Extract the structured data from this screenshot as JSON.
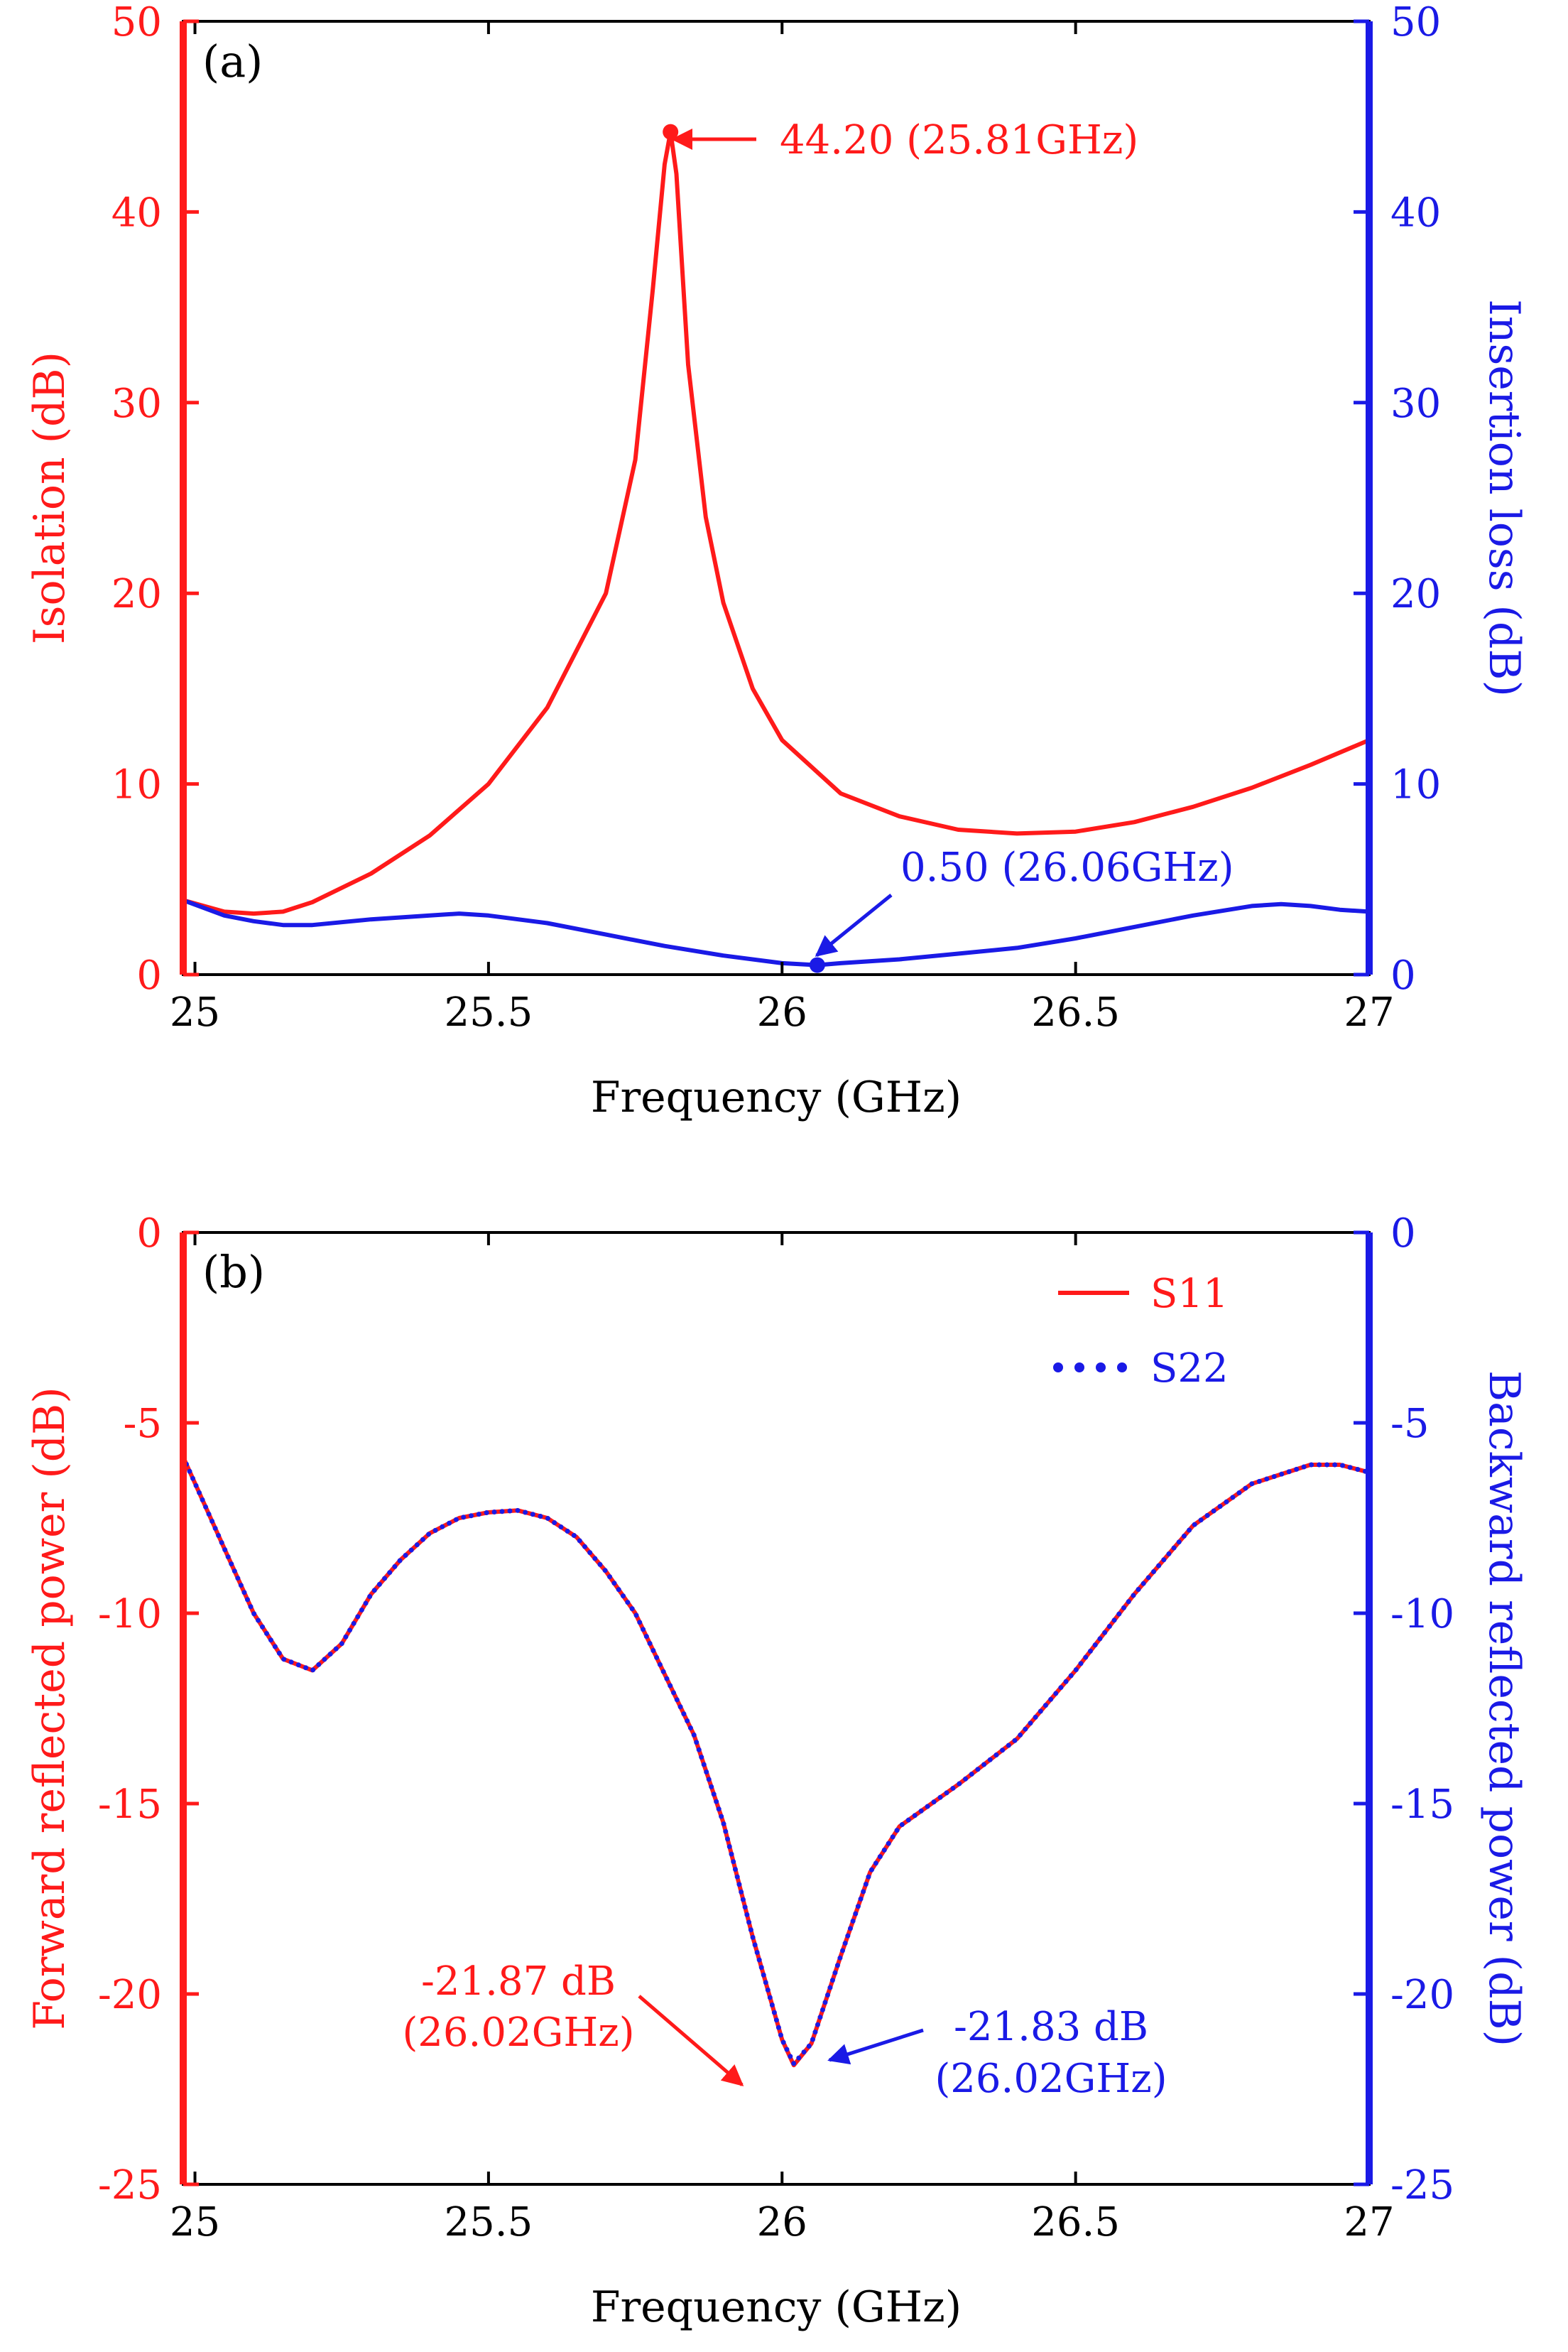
{
  "colors": {
    "red": "#ff1a1a",
    "blue": "#1a1ae6",
    "black": "#000000"
  },
  "chart_data": [
    {
      "type": "line",
      "panel_label": "(a)",
      "xlabel": "Frequency (GHz)",
      "ylabel_left": "Isolation (dB)",
      "ylabel_right": "Insertion loss (dB)",
      "xlim": [
        24.98,
        27.0
      ],
      "ylim_left": [
        0,
        50
      ],
      "ylim_right": [
        0,
        50
      ],
      "x_ticks": [
        25,
        25.5,
        26,
        26.5,
        27
      ],
      "x_tick_labels": [
        "25",
        "25.5",
        "26",
        "26.5",
        "27"
      ],
      "y_ticks_left": [
        0,
        10,
        20,
        30,
        40,
        50
      ],
      "y_tick_labels_left": [
        "0",
        "10",
        "20",
        "30",
        "40",
        "50"
      ],
      "y_ticks_right": [
        0,
        10,
        20,
        30,
        40,
        50
      ],
      "y_tick_labels_right": [
        "0",
        "10",
        "20",
        "30",
        "40",
        "50"
      ],
      "series": [
        {
          "name": "Isolation",
          "axis": "left",
          "color": "#ff1a1a",
          "style": "solid",
          "x": [
            24.98,
            25.05,
            25.1,
            25.15,
            25.2,
            25.3,
            25.4,
            25.5,
            25.6,
            25.7,
            25.75,
            25.78,
            25.8,
            25.81,
            25.82,
            25.84,
            25.87,
            25.9,
            25.95,
            26.0,
            26.1,
            26.2,
            26.3,
            26.4,
            26.5,
            26.6,
            26.7,
            26.8,
            26.9,
            27.0
          ],
          "y": [
            3.9,
            3.3,
            3.2,
            3.3,
            3.8,
            5.3,
            7.3,
            10.0,
            14.0,
            20.0,
            27.0,
            36.0,
            42.5,
            44.2,
            42.0,
            32.0,
            24.0,
            19.5,
            15.0,
            12.3,
            9.5,
            8.3,
            7.6,
            7.4,
            7.5,
            8.0,
            8.8,
            9.8,
            11.0,
            12.3
          ]
        },
        {
          "name": "Insertion loss",
          "axis": "right",
          "color": "#1a1ae6",
          "style": "solid",
          "x": [
            24.98,
            25.05,
            25.1,
            25.15,
            25.2,
            25.3,
            25.4,
            25.45,
            25.5,
            25.6,
            25.7,
            25.8,
            25.9,
            26.0,
            26.06,
            26.1,
            26.2,
            26.3,
            26.4,
            26.5,
            26.6,
            26.7,
            26.8,
            26.85,
            26.9,
            26.95,
            27.0
          ],
          "y": [
            3.9,
            3.1,
            2.8,
            2.6,
            2.6,
            2.9,
            3.1,
            3.2,
            3.1,
            2.7,
            2.1,
            1.5,
            1.0,
            0.6,
            0.5,
            0.6,
            0.8,
            1.1,
            1.4,
            1.9,
            2.5,
            3.1,
            3.6,
            3.7,
            3.6,
            3.4,
            3.3
          ]
        }
      ],
      "markers": [
        {
          "x": 25.81,
          "y": 44.2,
          "axis": "left",
          "color": "#ff1a1a",
          "label": "44.20 (25.81GHz)"
        },
        {
          "x": 26.06,
          "y": 0.5,
          "axis": "right",
          "color": "#1a1ae6",
          "label": "0.50 (26.06GHz)"
        }
      ]
    },
    {
      "type": "line",
      "panel_label": "(b)",
      "xlabel": "Frequency (GHz)",
      "ylabel_left": "Forward reflected power (dB)",
      "ylabel_right": "Backward reflected power (dB)",
      "xlim": [
        24.98,
        27.0
      ],
      "ylim_left": [
        -25,
        0
      ],
      "ylim_right": [
        -25,
        0
      ],
      "x_ticks": [
        25,
        25.5,
        26,
        26.5,
        27
      ],
      "x_tick_labels": [
        "25",
        "25.5",
        "26",
        "26.5",
        "27"
      ],
      "y_ticks_left": [
        0,
        -5,
        -10,
        -15,
        -20,
        -25
      ],
      "y_tick_labels_left": [
        "0",
        "-5",
        "-10",
        "-15",
        "-20",
        "-25"
      ],
      "y_ticks_right": [
        0,
        -5,
        -10,
        -15,
        -20,
        -25
      ],
      "y_tick_labels_right": [
        "0",
        "-5",
        "-10",
        "-15",
        "-20",
        "-25"
      ],
      "legend": {
        "placement": "top-right",
        "entries": [
          "S11",
          "S22"
        ]
      },
      "series": [
        {
          "name": "S11",
          "axis": "left",
          "color": "#ff1a1a",
          "style": "solid",
          "x": [
            24.98,
            25.05,
            25.1,
            25.15,
            25.2,
            25.25,
            25.3,
            25.35,
            25.4,
            25.45,
            25.5,
            25.55,
            25.6,
            25.65,
            25.7,
            25.75,
            25.8,
            25.85,
            25.9,
            25.95,
            26.0,
            26.02,
            26.05,
            26.1,
            26.15,
            26.2,
            26.3,
            26.4,
            26.5,
            26.6,
            26.7,
            26.8,
            26.9,
            26.95,
            27.0
          ],
          "y": [
            -5.9,
            -8.3,
            -10.0,
            -11.2,
            -11.5,
            -10.8,
            -9.5,
            -8.6,
            -7.9,
            -7.5,
            -7.35,
            -7.3,
            -7.5,
            -8.0,
            -8.9,
            -10.0,
            -11.6,
            -13.2,
            -15.5,
            -18.5,
            -21.2,
            -21.87,
            -21.3,
            -19.0,
            -16.8,
            -15.6,
            -14.5,
            -13.3,
            -11.5,
            -9.5,
            -7.7,
            -6.6,
            -6.1,
            -6.1,
            -6.3
          ]
        },
        {
          "name": "S22",
          "axis": "right",
          "color": "#1a1ae6",
          "style": "dotted",
          "x": [
            24.98,
            25.05,
            25.1,
            25.15,
            25.2,
            25.25,
            25.3,
            25.35,
            25.4,
            25.45,
            25.5,
            25.55,
            25.6,
            25.65,
            25.7,
            25.75,
            25.8,
            25.85,
            25.9,
            25.95,
            26.0,
            26.02,
            26.05,
            26.1,
            26.15,
            26.2,
            26.3,
            26.4,
            26.5,
            26.6,
            26.7,
            26.8,
            26.9,
            26.95,
            27.0
          ],
          "y": [
            -5.9,
            -8.3,
            -10.0,
            -11.2,
            -11.5,
            -10.8,
            -9.5,
            -8.6,
            -7.9,
            -7.5,
            -7.35,
            -7.3,
            -7.5,
            -8.0,
            -8.9,
            -10.0,
            -11.6,
            -13.2,
            -15.5,
            -18.5,
            -21.2,
            -21.83,
            -21.3,
            -19.0,
            -16.8,
            -15.6,
            -14.5,
            -13.3,
            -11.5,
            -9.5,
            -7.7,
            -6.6,
            -6.1,
            -6.1,
            -6.3
          ]
        }
      ],
      "annotations": [
        {
          "x": 26.02,
          "y": -21.87,
          "color": "#ff1a1a",
          "lines": [
            "-21.87 dB",
            "(26.02GHz)"
          ]
        },
        {
          "x": 26.02,
          "y": -21.83,
          "color": "#1a1ae6",
          "lines": [
            "-21.83 dB",
            "(26.02GHz)"
          ]
        }
      ]
    }
  ]
}
